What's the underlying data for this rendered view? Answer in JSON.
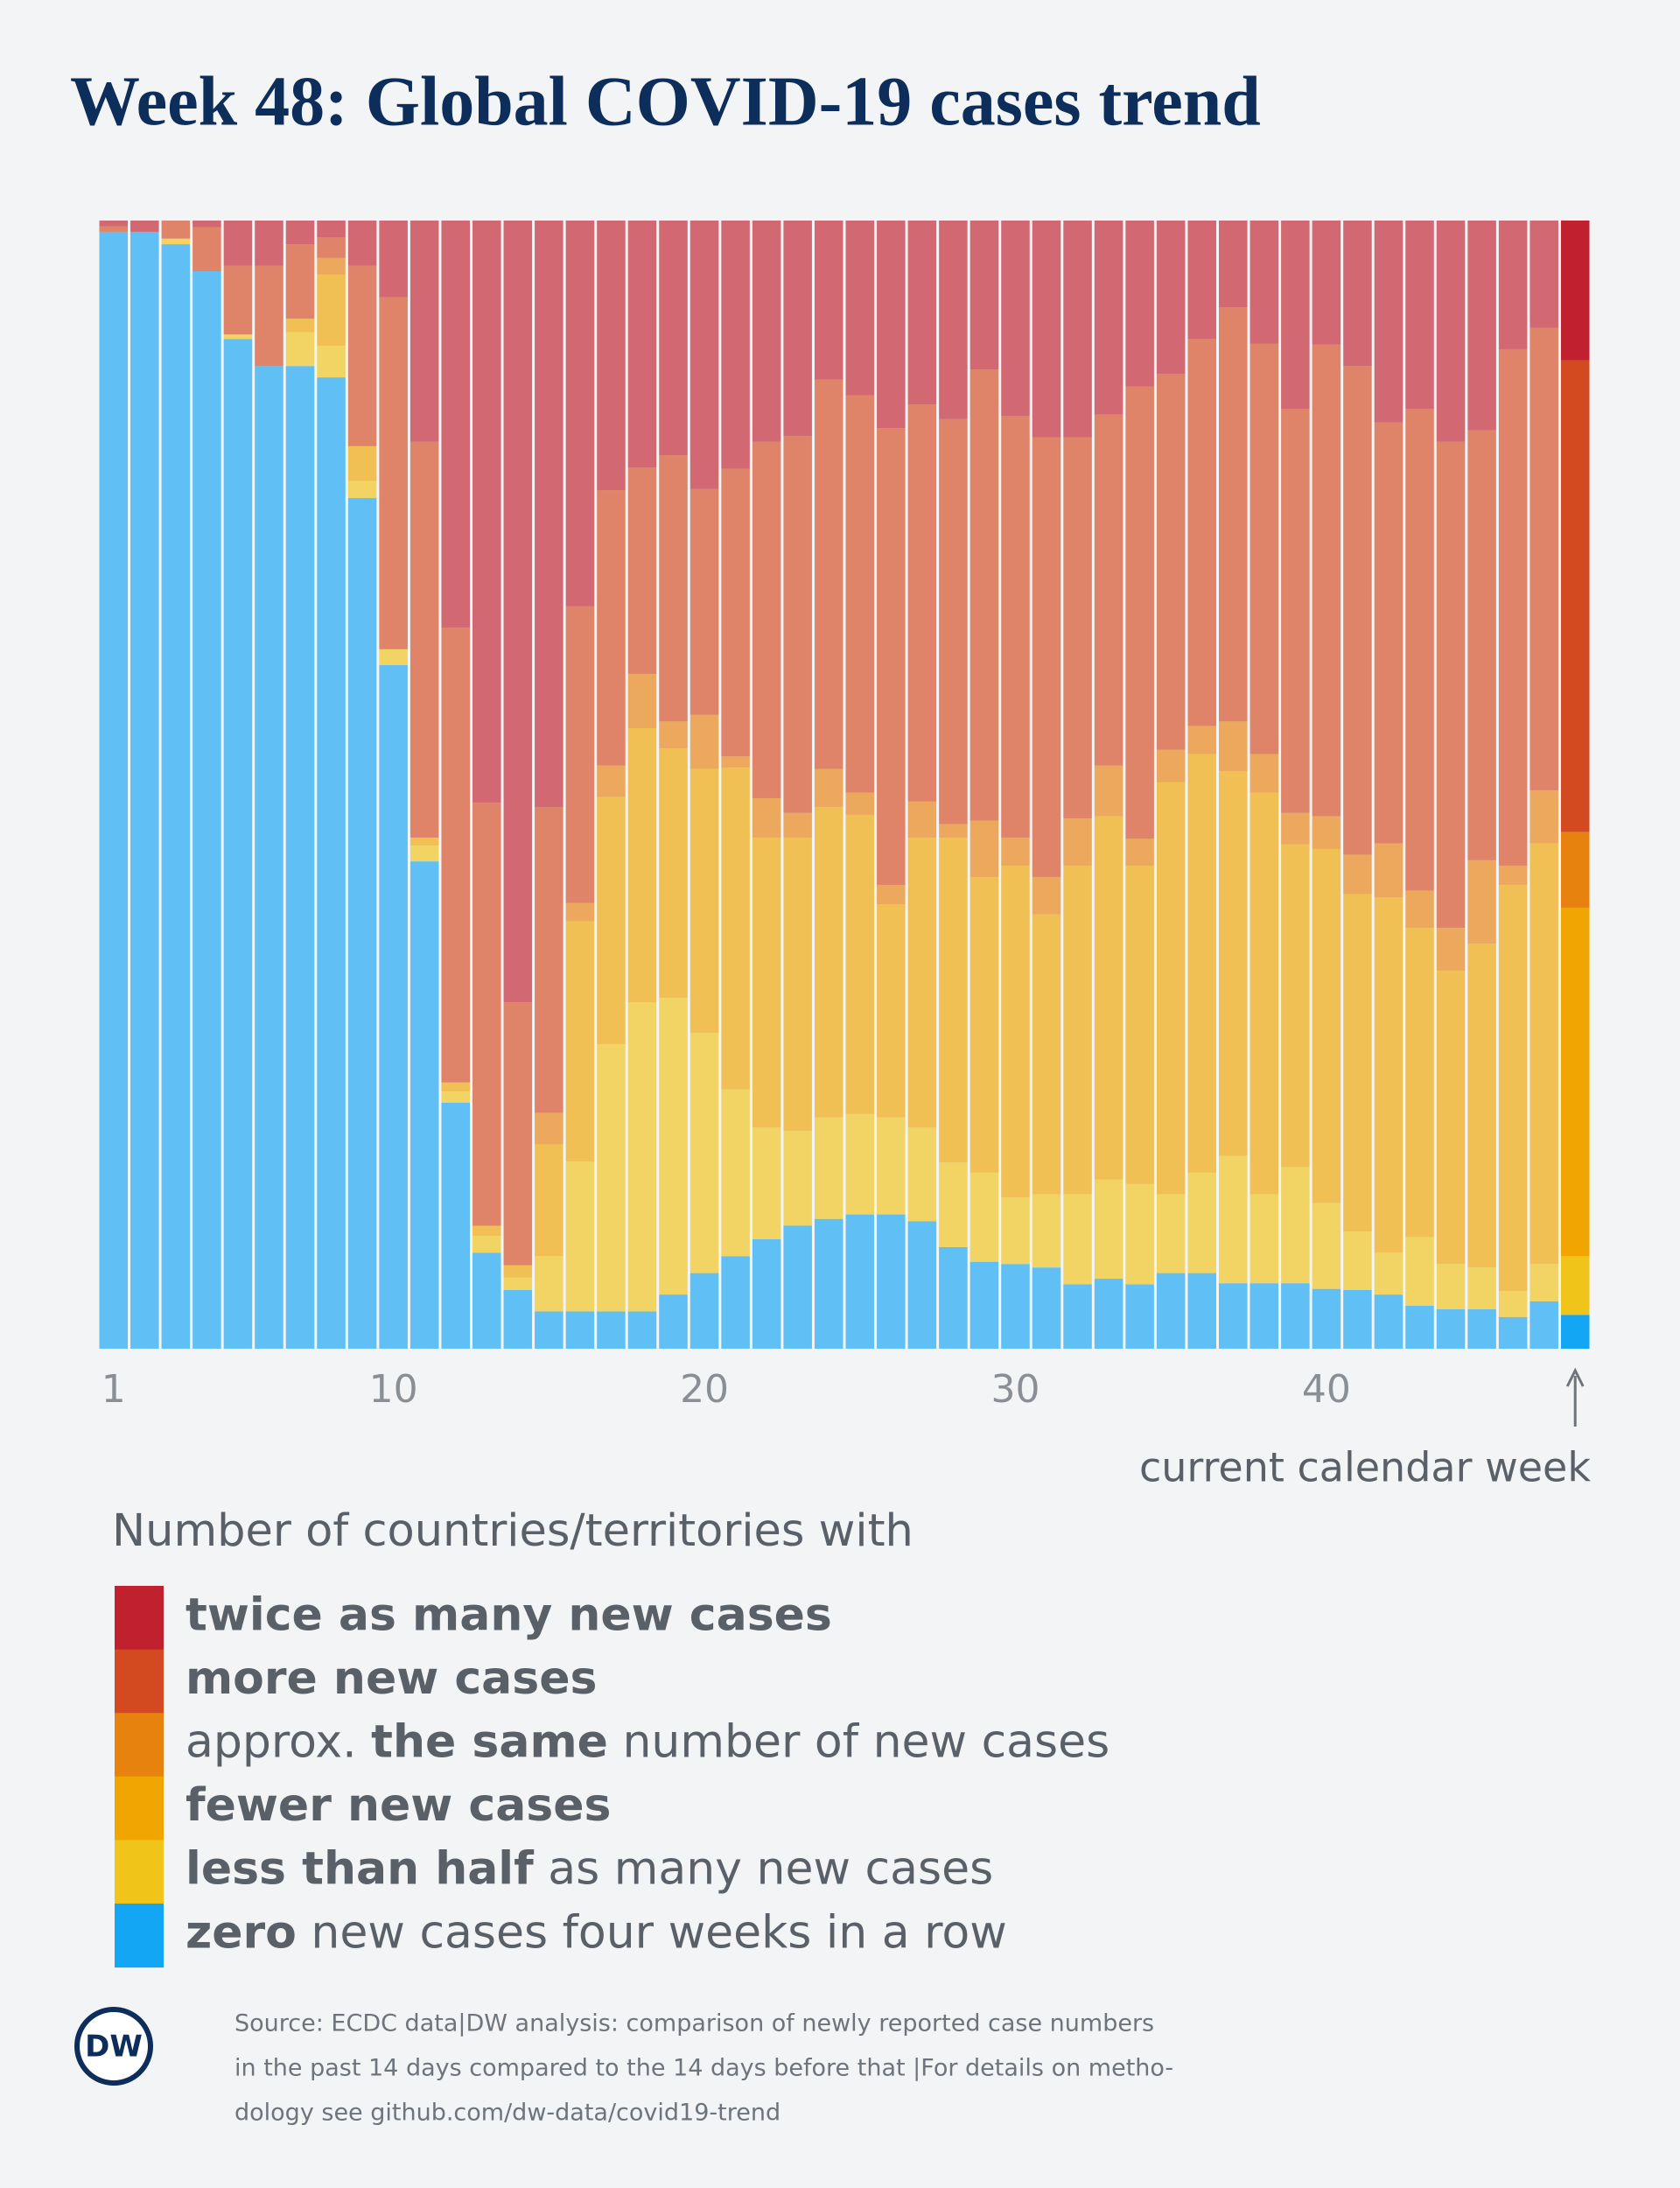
{
  "chart_data": {
    "type": "stacked_bar",
    "title": "Week 48: Global COVID-19 cases trend",
    "x": [
      1,
      2,
      3,
      4,
      5,
      6,
      7,
      8,
      9,
      10,
      11,
      12,
      13,
      14,
      15,
      16,
      17,
      18,
      19,
      20,
      21,
      22,
      23,
      24,
      25,
      26,
      27,
      28,
      29,
      30,
      31,
      32,
      33,
      34,
      35,
      36,
      37,
      38,
      39,
      40,
      41,
      42,
      43,
      44,
      45,
      46,
      47,
      48
    ],
    "xticks": [
      1,
      10,
      20,
      30,
      40
    ],
    "ylim": [
      0,
      100
    ],
    "annotation": "current calendar week",
    "legend_title": "Number of countries/territories with",
    "series": [
      {
        "name_parts": [
          {
            "text": "twice as many new cases",
            "bold": true
          }
        ],
        "color": "#c1202e",
        "values": [
          0.5,
          1,
          0,
          0.6,
          4,
          4,
          2.1,
          1.5,
          4,
          6.8,
          19.6,
          36.1,
          51.6,
          69.3,
          52,
          34.2,
          23.9,
          21.9,
          20.8,
          23.8,
          22,
          19.6,
          19.1,
          14.1,
          15.5,
          18.4,
          16.3,
          17.6,
          13.2,
          17.3,
          19.2,
          19.2,
          17.2,
          14.7,
          13.6,
          10.5,
          7.7,
          10.9,
          16.7,
          11,
          12.9,
          17.9,
          16.7,
          19.6,
          18.6,
          11.4,
          9.5,
          12.4
        ]
      },
      {
        "name_parts": [
          {
            "text": "more new cases",
            "bold": true
          }
        ],
        "color": "#d44a20",
        "values": [
          0.5,
          0,
          1.6,
          3.9,
          6.1,
          8.9,
          6.6,
          1.8,
          16,
          31.2,
          35.1,
          40.3,
          37.5,
          23.3,
          27.1,
          26.3,
          24.4,
          18.3,
          23.6,
          20,
          25.5,
          31.6,
          33.4,
          34.5,
          35.2,
          40.5,
          35.2,
          35.9,
          40,
          37.4,
          39,
          33.8,
          31.1,
          40.1,
          33.3,
          34.3,
          36.7,
          36.4,
          35.8,
          41.8,
          43.3,
          37.3,
          42.7,
          43.1,
          38.1,
          45.8,
          41,
          41.8
        ]
      },
      {
        "name_parts": [
          {
            "text": "approx. ",
            "bold": false
          },
          {
            "text": "the same",
            "bold": true
          },
          {
            "text": " number of new cases",
            "bold": false
          }
        ],
        "color": "#e8820f",
        "values": [
          0,
          0,
          0,
          0,
          0,
          0,
          0,
          1.5,
          0,
          0,
          0,
          0,
          0,
          0,
          2.8,
          1.6,
          2.8,
          4.8,
          2.4,
          4.8,
          1,
          3.5,
          2.2,
          3.4,
          2,
          1.7,
          3.2,
          1.2,
          5,
          2.5,
          3.3,
          4.2,
          4.5,
          2.4,
          2.9,
          2.5,
          4.4,
          3.4,
          2.8,
          2.9,
          3.5,
          4.8,
          3.3,
          3.8,
          7.4,
          1.7,
          4.7,
          6.7
        ]
      },
      {
        "name_parts": [
          {
            "text": "fewer new cases",
            "bold": true
          }
        ],
        "color": "#f0a500",
        "values": [
          0,
          0,
          0,
          0,
          0,
          0,
          1.2,
          6.3,
          3.1,
          0,
          0.7,
          0.8,
          0.9,
          1.1,
          9.9,
          21.3,
          21.9,
          24.3,
          22.1,
          23.4,
          28.5,
          25.7,
          26,
          27.5,
          26.5,
          18.9,
          25.7,
          28.8,
          26.2,
          29.4,
          24.8,
          29.1,
          32.2,
          28.2,
          36.5,
          37.1,
          34.1,
          35.6,
          28.6,
          31.4,
          29.9,
          31.5,
          27.4,
          26,
          28.7,
          36,
          37.3,
          30.9
        ]
      },
      {
        "name_parts": [
          {
            "text": "less than half",
            "bold": true
          },
          {
            "text": " as many new cases",
            "bold": false
          }
        ],
        "color": "#f0c419",
        "values": [
          0,
          0,
          0.5,
          0,
          0.4,
          0,
          3,
          2.8,
          1.5,
          1.4,
          1.4,
          1,
          1.5,
          1.1,
          4.9,
          13.3,
          23.7,
          27.4,
          26.3,
          21.3,
          14.8,
          9.9,
          8.4,
          9,
          8.9,
          8.6,
          8.3,
          7.5,
          7.9,
          5.9,
          6.5,
          8,
          8.8,
          8.9,
          7,
          8.9,
          11.3,
          7.9,
          10.3,
          7.6,
          5.2,
          3.7,
          6.1,
          4,
          3.7,
          2.3,
          3.3,
          5.2
        ]
      },
      {
        "name_parts": [
          {
            "text": "zero",
            "bold": true
          },
          {
            "text": " new cases four weeks in a row",
            "bold": false
          }
        ],
        "color": "#13a6f5",
        "values": [
          99,
          99,
          97.9,
          95.5,
          89.5,
          87.1,
          87.1,
          86.1,
          75.4,
          60.6,
          43.2,
          21.8,
          8.5,
          5.2,
          3.3,
          3.3,
          3.3,
          3.3,
          4.8,
          6.7,
          8.2,
          9.7,
          10.9,
          11.5,
          11.9,
          11.9,
          11.3,
          9,
          7.7,
          7.5,
          7.2,
          5.7,
          6.2,
          5.7,
          6.7,
          6.7,
          5.8,
          5.8,
          5.8,
          5.3,
          5.2,
          4.8,
          3.8,
          3.5,
          3.5,
          2.8,
          4.2,
          3
        ]
      }
    ]
  },
  "footer": {
    "logo": "DW",
    "source_lines": [
      "Source: ECDC data|DW analysis: comparison of newly reported case numbers",
      "in the past 14 days compared to the 14 days before that |For details on metho-",
      "dology see github.com/dw-data/covid19-trend"
    ]
  }
}
